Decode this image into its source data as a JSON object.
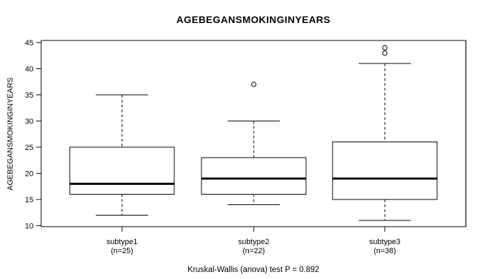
{
  "chart_data": {
    "type": "boxplot",
    "title": "AGEBEGANSMOKINGINYEARS",
    "ylabel": "AGEBEGANSMOKINGINYEARS",
    "xlabel": "",
    "caption": "Kruskal-Wallis (anova) test P = 0.892",
    "test_name": "Kruskal-Wallis (anova)",
    "p_value": 0.892,
    "ylim": [
      10,
      45
    ],
    "yticks": [
      10,
      15,
      20,
      25,
      30,
      35,
      40,
      45
    ],
    "grid": "off",
    "categories": [
      "subtype1",
      "subtype2",
      "subtype3"
    ],
    "sublabels": [
      "(n=25)",
      "(n=22)",
      "(n=38)"
    ],
    "series": [
      {
        "name": "subtype1",
        "n": 25,
        "whisker_low": 12,
        "q1": 16,
        "median": 18,
        "q3": 25,
        "whisker_high": 35,
        "outliers": []
      },
      {
        "name": "subtype2",
        "n": 22,
        "whisker_low": 14,
        "q1": 16,
        "median": 19,
        "q3": 23,
        "whisker_high": 30,
        "outliers": [
          37
        ]
      },
      {
        "name": "subtype3",
        "n": 38,
        "whisker_low": 11,
        "q1": 15,
        "median": 19,
        "q3": 26,
        "whisker_high": 41,
        "outliers": [
          43,
          44
        ]
      }
    ],
    "colors": {
      "line": "#000000",
      "median": "#000000",
      "box_fill": "#ffffff",
      "frame_top": "#828282",
      "frame_shadow": "#bbbbbb",
      "background": "#ffffff"
    }
  }
}
